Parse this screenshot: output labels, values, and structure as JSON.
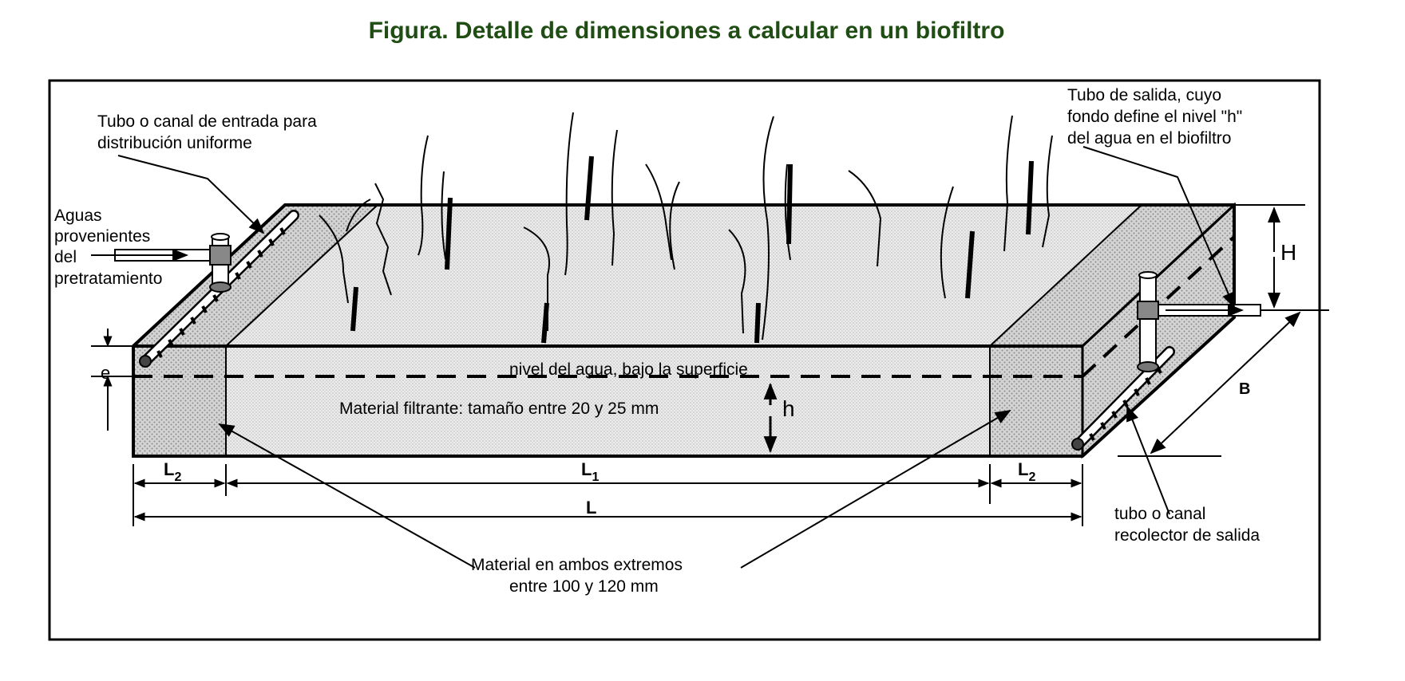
{
  "title": "Figura. Detalle de dimensiones a calcular en un biofiltro",
  "colors": {
    "title": "#1f4d14",
    "line": "#000000",
    "gravel": "#c9c9c9",
    "filter": "#e6e6e6"
  },
  "labels": {
    "inlet_pipe_line1": "Tubo o canal de entrada para",
    "inlet_pipe_line2": "distribución uniforme",
    "influent_line1": "Aguas",
    "influent_line2": "provenientes",
    "influent_line3": "del",
    "influent_line4": "pretratamiento",
    "outlet_tube_line1": "Tubo de salida, cuyo",
    "outlet_tube_line2": "fondo define el nivel \"h\"",
    "outlet_tube_line3": "del agua en el biofiltro",
    "water_level": "nivel del agua, bajo la superficie",
    "filter_material": "Material filtrante: tamaño entre 20 y 25 mm",
    "end_material_line1": "Material en ambos extremos",
    "end_material_line2": "entre 100 y 120 mm",
    "collector_line1": "tubo o canal",
    "collector_line2": "recolector de salida"
  },
  "dimensions": {
    "e": "e",
    "h": "h",
    "H": "H",
    "B": "B",
    "L": "L",
    "L1_main": "L",
    "L1_sub": "1",
    "L2_main": "L",
    "L2_sub": "2"
  }
}
